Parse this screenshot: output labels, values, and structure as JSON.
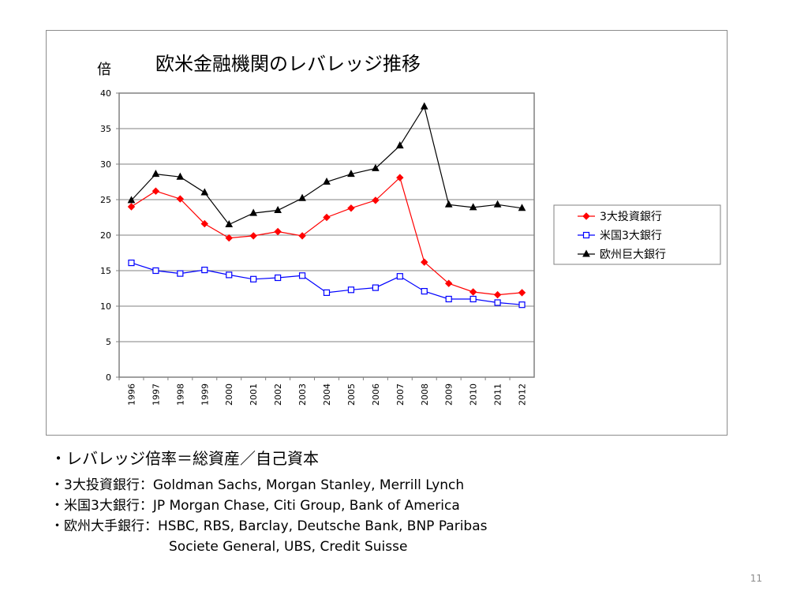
{
  "chart_data": {
    "type": "line",
    "title": "欧米金融機関のレバレッジ推移",
    "ylabel": "倍",
    "xlabel": "",
    "ylim": [
      0,
      40
    ],
    "yticks": [
      0,
      5,
      10,
      15,
      20,
      25,
      30,
      35,
      40
    ],
    "grid": true,
    "legend_position": "right",
    "categories": [
      "1996",
      "1997",
      "1998",
      "1999",
      "2000",
      "2001",
      "2002",
      "2003",
      "2004",
      "2005",
      "2006",
      "2007",
      "2008",
      "2009",
      "2010",
      "2011",
      "2012"
    ],
    "series": [
      {
        "name": "3大投資銀行",
        "color": "#ff0000",
        "marker": "diamond",
        "values": [
          24.0,
          26.2,
          25.1,
          21.6,
          19.6,
          19.9,
          20.5,
          19.9,
          22.5,
          23.8,
          24.9,
          28.1,
          16.2,
          13.2,
          12.0,
          11.6,
          11.9
        ]
      },
      {
        "name": "米国3大銀行",
        "color": "#0000ff",
        "marker": "square",
        "values": [
          16.1,
          15.0,
          14.6,
          15.1,
          14.4,
          13.8,
          14.0,
          14.3,
          11.9,
          12.3,
          12.6,
          14.2,
          12.1,
          11.0,
          11.0,
          10.5,
          10.2
        ]
      },
      {
        "name": "欧州巨大銀行",
        "color": "#000000",
        "marker": "triangle",
        "values": [
          24.9,
          28.6,
          28.2,
          26.0,
          21.5,
          23.1,
          23.5,
          25.2,
          27.5,
          28.6,
          29.4,
          32.6,
          38.1,
          24.3,
          23.9,
          24.3,
          23.8
        ]
      }
    ]
  },
  "notes": {
    "formula": "・レバレッジ倍率＝総資産／自己資本",
    "lines": [
      "・3大投資銀行：Goldman Sachs, Morgan Stanley, Merrill Lynch",
      "・米国3大銀行：JP Morgan Chase, Citi Group, Bank of America",
      "・欧州大手銀行：HSBC, RBS, Barclay, Deutsche Bank, BNP Paribas",
      "Societe General, UBS, Credit Suisse"
    ]
  },
  "page_number": "11"
}
